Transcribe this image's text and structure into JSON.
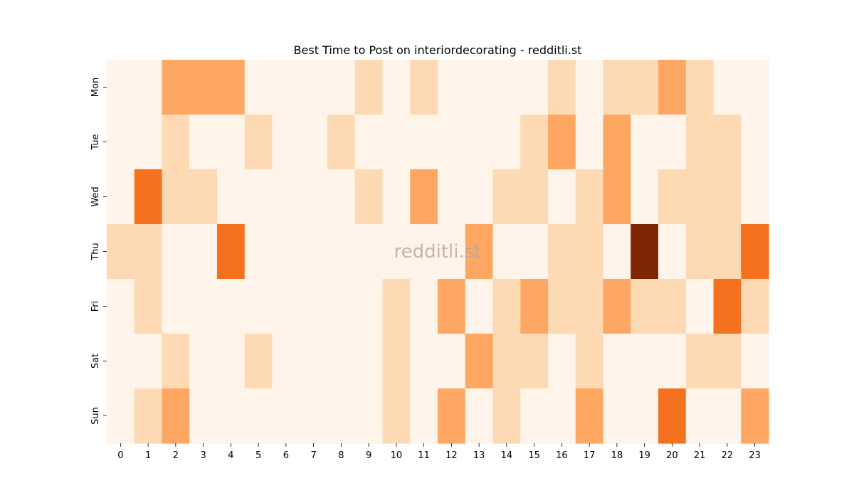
{
  "chart_data": {
    "type": "heatmap",
    "title": "Best Time to Post on interiordecorating - redditli.st",
    "watermark": "redditli.st",
    "x_categories": [
      "0",
      "1",
      "2",
      "3",
      "4",
      "5",
      "6",
      "7",
      "8",
      "9",
      "10",
      "11",
      "12",
      "13",
      "14",
      "15",
      "16",
      "17",
      "18",
      "19",
      "20",
      "21",
      "22",
      "23"
    ],
    "y_categories": [
      "Mon",
      "Tue",
      "Wed",
      "Thu",
      "Fri",
      "Sat",
      "Sun"
    ],
    "levels": 5,
    "values": [
      [
        0,
        0,
        2,
        2,
        2,
        0,
        0,
        0,
        0,
        1,
        0,
        1,
        0,
        0,
        0,
        0,
        1,
        0,
        1,
        1,
        2,
        1,
        0,
        0
      ],
      [
        0,
        0,
        1,
        0,
        0,
        1,
        0,
        0,
        1,
        0,
        0,
        0,
        0,
        0,
        0,
        1,
        2,
        0,
        2,
        0,
        0,
        1,
        1,
        0
      ],
      [
        0,
        3,
        1,
        1,
        0,
        0,
        0,
        0,
        0,
        1,
        0,
        2,
        0,
        0,
        1,
        1,
        0,
        1,
        2,
        0,
        1,
        1,
        1,
        0
      ],
      [
        1,
        1,
        0,
        0,
        3,
        0,
        0,
        0,
        0,
        0,
        0,
        0,
        0,
        2,
        0,
        0,
        1,
        1,
        0,
        4,
        0,
        1,
        1,
        3
      ],
      [
        0,
        1,
        0,
        0,
        0,
        0,
        0,
        0,
        0,
        0,
        1,
        0,
        2,
        0,
        1,
        2,
        1,
        1,
        2,
        1,
        1,
        0,
        3,
        1
      ],
      [
        0,
        0,
        1,
        0,
        0,
        1,
        0,
        0,
        0,
        0,
        1,
        0,
        0,
        2,
        1,
        1,
        0,
        1,
        0,
        0,
        0,
        1,
        1,
        0
      ],
      [
        0,
        1,
        2,
        0,
        0,
        0,
        0,
        0,
        0,
        0,
        1,
        0,
        2,
        0,
        1,
        0,
        0,
        2,
        0,
        0,
        3,
        0,
        0,
        2
      ]
    ],
    "colors": [
      "#fef4ea",
      "#fdd9b4",
      "#fda762",
      "#f3711f",
      "#7f2704"
    ],
    "grid": false,
    "legend": "none"
  }
}
